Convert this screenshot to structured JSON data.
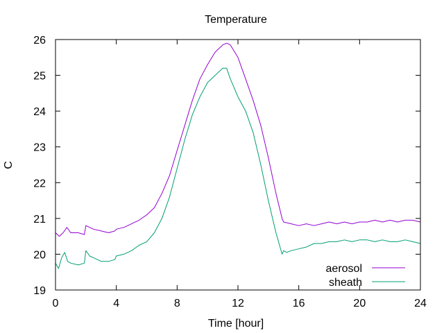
{
  "chart_data": {
    "type": "line",
    "title": "Temperature",
    "xlabel": "Time [hour]",
    "ylabel": "C",
    "xlim": [
      0,
      24
    ],
    "ylim": [
      19,
      26
    ],
    "xticks": [
      0,
      4,
      8,
      12,
      16,
      20,
      24
    ],
    "yticks": [
      19,
      20,
      21,
      22,
      23,
      24,
      25,
      26
    ],
    "grid": false,
    "legend_position": "bottom-right",
    "series": [
      {
        "name": "aerosol",
        "color": "#9400d3",
        "x": [
          0,
          0.25,
          0.5,
          0.75,
          1.0,
          1.5,
          1.9,
          2.0,
          2.25,
          2.5,
          3.0,
          3.5,
          3.9,
          4.0,
          4.5,
          5.0,
          5.5,
          6.0,
          6.5,
          7.0,
          7.5,
          8.0,
          8.5,
          9.0,
          9.5,
          10.0,
          10.5,
          11.0,
          11.25,
          11.5,
          12.0,
          12.5,
          13.0,
          13.5,
          14.0,
          14.5,
          14.9,
          15.0,
          15.5,
          16.0,
          16.5,
          17.0,
          17.5,
          18.0,
          18.5,
          19.0,
          19.5,
          20.0,
          20.5,
          21.0,
          21.5,
          22.0,
          22.5,
          23.0,
          23.5,
          24.0
        ],
        "values": [
          20.6,
          20.5,
          20.6,
          20.75,
          20.6,
          20.6,
          20.55,
          20.8,
          20.75,
          20.7,
          20.65,
          20.6,
          20.65,
          20.7,
          20.75,
          20.85,
          20.95,
          21.1,
          21.3,
          21.7,
          22.2,
          22.9,
          23.6,
          24.3,
          24.9,
          25.3,
          25.65,
          25.85,
          25.9,
          25.85,
          25.5,
          24.9,
          24.3,
          23.6,
          22.7,
          21.7,
          21.0,
          20.9,
          20.85,
          20.8,
          20.85,
          20.8,
          20.85,
          20.9,
          20.85,
          20.9,
          20.85,
          20.9,
          20.9,
          20.95,
          20.9,
          20.95,
          20.9,
          20.95,
          20.95,
          20.9
        ]
      },
      {
        "name": "sheath",
        "color": "#009e73",
        "x": [
          0,
          0.2,
          0.4,
          0.6,
          0.8,
          1.0,
          1.5,
          1.9,
          2.0,
          2.25,
          2.5,
          3.0,
          3.5,
          3.9,
          4.0,
          4.5,
          5.0,
          5.5,
          6.0,
          6.5,
          7.0,
          7.5,
          8.0,
          8.5,
          9.0,
          9.5,
          10.0,
          10.5,
          11.0,
          11.25,
          11.5,
          12.0,
          12.5,
          13.0,
          13.5,
          14.0,
          14.5,
          14.9,
          15.0,
          15.2,
          15.5,
          16.0,
          16.5,
          17.0,
          17.5,
          18.0,
          18.5,
          19.0,
          19.5,
          20.0,
          20.5,
          21.0,
          21.5,
          22.0,
          22.5,
          23.0,
          23.5,
          24.0
        ],
        "values": [
          19.75,
          19.6,
          19.9,
          20.05,
          19.8,
          19.75,
          19.7,
          19.75,
          20.1,
          19.95,
          19.9,
          19.8,
          19.8,
          19.85,
          19.95,
          20.0,
          20.1,
          20.25,
          20.35,
          20.6,
          21.0,
          21.6,
          22.4,
          23.2,
          23.9,
          24.4,
          24.8,
          25.0,
          25.2,
          25.2,
          24.9,
          24.4,
          24.0,
          23.4,
          22.5,
          21.5,
          20.6,
          20.0,
          20.1,
          20.05,
          20.1,
          20.15,
          20.2,
          20.3,
          20.3,
          20.35,
          20.35,
          20.4,
          20.35,
          20.4,
          20.4,
          20.35,
          20.4,
          20.35,
          20.35,
          20.4,
          20.35,
          20.3
        ]
      }
    ]
  }
}
